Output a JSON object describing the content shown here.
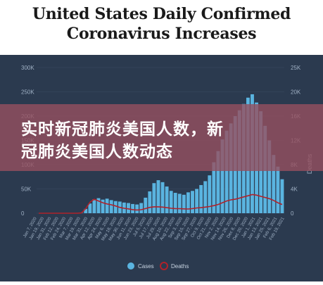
{
  "header": {
    "title_line1": "United States Daily Confirmed",
    "title_line2": "Coronavirus Increases"
  },
  "overlay": {
    "line1": "实时新冠肺炎美国人数，新",
    "line2": "冠肺炎美国人数动态"
  },
  "chart_data": {
    "type": "bar",
    "title": "United States Daily Confirmed Coronavirus Increases",
    "ylabel_left": "",
    "ylabel_right": "Deaths",
    "ylim_left": [
      0,
      300000
    ],
    "ylim_right": [
      0,
      25000
    ],
    "yticks_left": [
      "0",
      "50K",
      "100K",
      "150K",
      "200K",
      "250K",
      "300K"
    ],
    "yticks_right": [
      "0",
      "4K",
      "8K",
      "12K",
      "16K",
      "20K",
      "25K"
    ],
    "xticks": [
      "Jan 7, 2020",
      "Jan 19, 2020",
      "Jan 31, 2020",
      "Feb 12, 2020",
      "Feb 24, 2020",
      "Mar 7, 2020",
      "Mar 19, 2020",
      "Mar 31, 2020",
      "Apr 12, 2020",
      "Apr 24, 2020",
      "May 6, 2020",
      "May 18, 2020",
      "May 30, 2020",
      "Jun 11, 2020",
      "Jun 23, 2020",
      "Jul 5, 2020",
      "Jul 17, 2020",
      "Jul 29, 2020",
      "Aug 10, 2020",
      "Aug 22, 2020",
      "Sep 3, 2020",
      "Sep 15, 2020",
      "Sep 27, 2020",
      "Oct 9, 2020",
      "Oct 21, 2020",
      "Nov 2, 2020",
      "Nov 14, 2020",
      "Nov 26, 2020",
      "Dec 8, 2020",
      "Dec 20, 2020",
      "Jan 1, 2021",
      "Jan 13, 2021",
      "Jan 25, 2021",
      "Feb 6, 2021",
      "Feb 19, 2021"
    ],
    "legend": {
      "placement": "bottom",
      "cases_label": "Cases",
      "deaths_label": "Deaths"
    },
    "colors": {
      "cases": "#5ab4e0",
      "deaths": "#b0222a",
      "panel": "#2b3a4f"
    },
    "series": [
      {
        "name": "Cases",
        "axis": "left",
        "values": [
          0,
          0,
          0,
          0,
          0,
          0,
          0,
          0,
          0,
          100,
          600,
          9000,
          20000,
          29000,
          31000,
          28000,
          30000,
          27000,
          25000,
          24000,
          22000,
          21000,
          19000,
          18000,
          21000,
          32000,
          45000,
          62000,
          68000,
          64000,
          55000,
          46000,
          42000,
          40000,
          38000,
          43000,
          46000,
          50000,
          58000,
          66000,
          78000,
          105000,
          128000,
          152000,
          170000,
          185000,
          200000,
          212000,
          225000,
          238000,
          245000,
          228000,
          210000,
          180000,
          150000,
          120000,
          96000,
          70000
        ]
      },
      {
        "name": "Deaths",
        "axis": "right",
        "values": [
          0,
          0,
          0,
          0,
          0,
          0,
          0,
          0,
          0,
          0,
          50,
          800,
          1900,
          2400,
          2100,
          1800,
          1600,
          1450,
          1250,
          1000,
          850,
          750,
          620,
          550,
          600,
          800,
          1000,
          1100,
          1100,
          1050,
          950,
          850,
          800,
          780,
          750,
          720,
          800,
          900,
          950,
          1050,
          1150,
          1300,
          1500,
          1800,
          2100,
          2300,
          2400,
          2600,
          2800,
          3000,
          3200,
          3100,
          2900,
          2700,
          2500,
          2200,
          1800,
          1500
        ]
      }
    ]
  }
}
